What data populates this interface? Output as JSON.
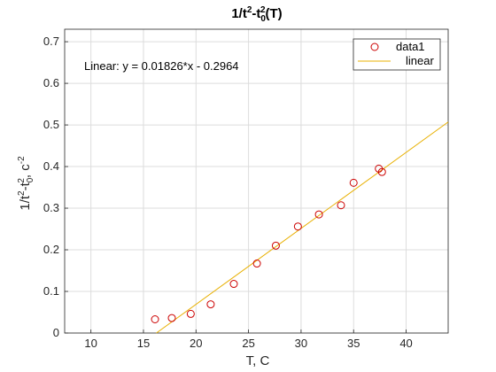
{
  "chart_data": {
    "type": "scatter",
    "title": {
      "base": "1/t",
      "sup1": "2",
      "mid": "-t",
      "sub": "0",
      "sup2": "2",
      "tail": "(T)"
    },
    "xlabel": "T, C",
    "ylabel": {
      "base": "1/t",
      "sup1": "2",
      "mid": "-t",
      "sub": "0",
      "sup2": "2",
      "tail": ", c",
      "sup3": "-2"
    },
    "xlim": [
      7.5,
      44
    ],
    "ylim": [
      0,
      0.73
    ],
    "xticks": [
      10,
      15,
      20,
      25,
      30,
      35,
      40
    ],
    "yticks": [
      0,
      0.1,
      0.2,
      0.3,
      0.4,
      0.5,
      0.6,
      0.7
    ],
    "ytick_labels": [
      "0",
      "0.1",
      "0.2",
      "0.3",
      "0.4",
      "0.5",
      "0.6",
      "0.7"
    ],
    "grid": true,
    "legend_position": "top-right",
    "series": [
      {
        "name": "data1",
        "kind": "markers",
        "marker": "circle",
        "color": "#cc0000",
        "x": [
          16.1,
          17.7,
          19.5,
          21.4,
          23.6,
          25.8,
          27.6,
          29.7,
          31.7,
          33.8,
          35.0,
          37.4,
          37.7
        ],
        "y": [
          0.033,
          0.036,
          0.046,
          0.069,
          0.118,
          0.167,
          0.21,
          0.256,
          0.285,
          0.307,
          0.361,
          0.395,
          0.387
        ]
      },
      {
        "name": "linear",
        "kind": "line",
        "color": "#e8b000",
        "slope": 0.01826,
        "intercept": -0.2964,
        "x_range": [
          16.23,
          44
        ]
      }
    ],
    "annotation": "Linear:  y = 0.01826*x - 0.2964"
  }
}
